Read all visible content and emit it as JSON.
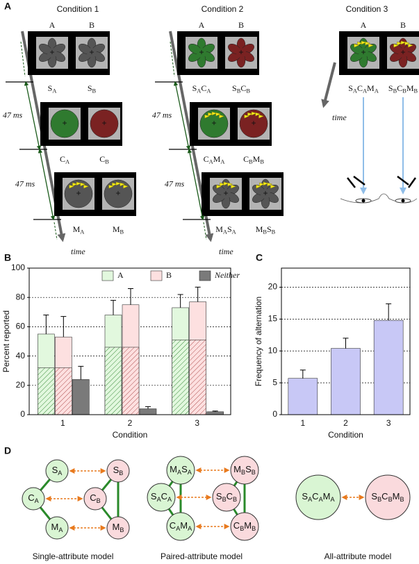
{
  "panel_a": {
    "label": "A",
    "conditions": [
      {
        "title": "Condition 1",
        "columns": [
          "A",
          "B"
        ],
        "intervals": [
          "47 ms",
          "47 ms"
        ],
        "time": "time",
        "frames": [
          {
            "labels": [
              [
                [
                  "S",
                  "A"
                ]
              ],
              [
                [
                  "S",
                  "B"
                ]
              ]
            ]
          },
          {
            "labels": [
              [
                [
                  "C",
                  "A"
                ]
              ],
              [
                [
                  "C",
                  "B"
                ]
              ]
            ]
          },
          {
            "labels": [
              [
                [
                  "M",
                  "A"
                ]
              ],
              [
                [
                  "M",
                  "B"
                ]
              ]
            ]
          }
        ]
      },
      {
        "title": "Condition 2",
        "columns": [
          "A",
          "B"
        ],
        "intervals": [
          "47 ms",
          "47 ms"
        ],
        "time": "time",
        "frames": [
          {
            "labels": [
              [
                [
                  "S",
                  "A"
                ],
                [
                  "C",
                  "A"
                ]
              ],
              [
                [
                  "S",
                  "B"
                ],
                [
                  "C",
                  "B"
                ]
              ]
            ]
          },
          {
            "labels": [
              [
                [
                  "C",
                  "A"
                ],
                [
                  "M",
                  "A"
                ]
              ],
              [
                [
                  "C",
                  "B"
                ],
                [
                  "M",
                  "B"
                ]
              ]
            ]
          },
          {
            "labels": [
              [
                [
                  "M",
                  "A"
                ],
                [
                  "S",
                  "A"
                ]
              ],
              [
                [
                  "M",
                  "B"
                ],
                [
                  "S",
                  "B"
                ]
              ]
            ]
          }
        ]
      },
      {
        "title": "Condition 3",
        "columns": [
          "A",
          "B"
        ],
        "time": "time",
        "frames": [
          {
            "labels": [
              [
                [
                  "S",
                  "A"
                ],
                [
                  "C",
                  "A"
                ],
                [
                  "M",
                  "A"
                ]
              ],
              [
                [
                  "S",
                  "B"
                ],
                [
                  "C",
                  "B"
                ],
                [
                  "M",
                  "B"
                ]
              ]
            ]
          }
        ]
      }
    ]
  },
  "chart_data": [
    {
      "type": "bar",
      "panel": "B",
      "xlabel": "Condition",
      "ylabel": "Percent reported",
      "categories": [
        "1",
        "2",
        "3"
      ],
      "ylim": [
        0,
        100
      ],
      "yticks": [
        0,
        20,
        40,
        60,
        80,
        100
      ],
      "grid": true,
      "legend": "top",
      "series": [
        {
          "name": "A",
          "color": "#e2f8de",
          "hatch_color": "#3c8c3c",
          "values": [
            55,
            68,
            73
          ],
          "hatched_values": [
            32,
            46,
            51
          ],
          "errors": [
            13,
            10,
            9
          ]
        },
        {
          "name": "B",
          "color": "#fde0e0",
          "hatch_color": "#b05050",
          "values": [
            53,
            75,
            77
          ],
          "hatched_values": [
            32,
            46,
            51
          ],
          "errors": [
            14,
            11,
            10
          ]
        },
        {
          "name": "Neither",
          "color": "#7a7a7a",
          "values": [
            24,
            4,
            2
          ],
          "errors": [
            9,
            1.5,
            0.5
          ]
        }
      ]
    },
    {
      "type": "bar",
      "panel": "C",
      "xlabel": "Condition",
      "ylabel": "Frequency of alternation",
      "categories": [
        "1",
        "2",
        "3"
      ],
      "ylim": [
        0,
        23
      ],
      "yticks": [
        0,
        5,
        10,
        15,
        20
      ],
      "grid": true,
      "color": "#c8c8f6",
      "values": [
        5.7,
        10.4,
        14.8
      ],
      "errors": [
        1.3,
        1.6,
        2.6
      ]
    }
  ],
  "panel_d": {
    "label": "D",
    "models": [
      {
        "name": "Single-attribute model",
        "nodes": [
          {
            "label": [
              [
                "S",
                "A"
              ]
            ]
          },
          {
            "label": [
              [
                "C",
                "A"
              ]
            ]
          },
          {
            "label": [
              [
                "M",
                "A"
              ]
            ]
          },
          {
            "label": [
              [
                "S",
                "B"
              ]
            ]
          },
          {
            "label": [
              [
                "C",
                "B"
              ]
            ]
          },
          {
            "label": [
              [
                "M",
                "B"
              ]
            ]
          }
        ]
      },
      {
        "name": "Paired-attribute model",
        "nodes": [
          {
            "label": [
              [
                "M",
                "A"
              ],
              [
                "S",
                "A"
              ]
            ]
          },
          {
            "label": [
              [
                "S",
                "A"
              ],
              [
                "C",
                "A"
              ]
            ]
          },
          {
            "label": [
              [
                "C",
                "A"
              ],
              [
                "M",
                "A"
              ]
            ]
          },
          {
            "label": [
              [
                "M",
                "B"
              ],
              [
                "S",
                "B"
              ]
            ]
          },
          {
            "label": [
              [
                "S",
                "B"
              ],
              [
                "C",
                "B"
              ]
            ]
          },
          {
            "label": [
              [
                "C",
                "B"
              ],
              [
                "M",
                "B"
              ]
            ]
          }
        ]
      },
      {
        "name": "All-attribute model",
        "nodes": [
          {
            "label": [
              [
                "S",
                "A"
              ],
              [
                "C",
                "A"
              ],
              [
                "M",
                "A"
              ]
            ]
          },
          {
            "label": [
              [
                "S",
                "B"
              ],
              [
                "C",
                "B"
              ],
              [
                "M",
                "B"
              ]
            ]
          }
        ]
      }
    ]
  }
}
